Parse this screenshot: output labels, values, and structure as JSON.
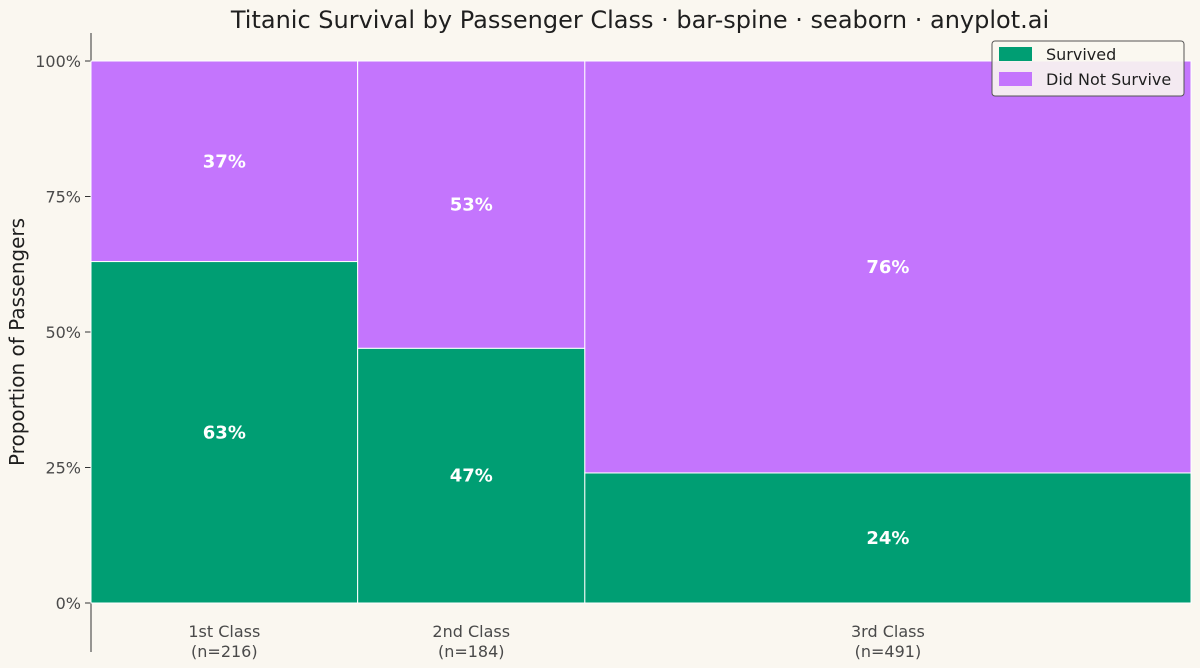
{
  "chart_data": {
    "type": "bar",
    "subtype": "spine",
    "title": "Titanic Survival by Passenger Class · bar-spine · seaborn · anyplot.ai",
    "xlabel": "",
    "ylabel": "Proportion of Passengers",
    "ylim": [
      0,
      1
    ],
    "yticks": [
      "0%",
      "25%",
      "50%",
      "75%",
      "100%"
    ],
    "categories": [
      "1st Class",
      "2nd Class",
      "3rd Class"
    ],
    "category_counts": [
      "(n=216)",
      "(n=184)",
      "(n=491)"
    ],
    "counts": [
      216,
      184,
      491
    ],
    "series": [
      {
        "name": "Survived",
        "color": "#009E73",
        "values": [
          0.63,
          0.47,
          0.24
        ],
        "labels": [
          "63%",
          "47%",
          "24%"
        ]
      },
      {
        "name": "Did Not Survive",
        "color": "#C475FD",
        "values": [
          0.37,
          0.53,
          0.76
        ],
        "labels": [
          "37%",
          "53%",
          "76%"
        ]
      }
    ],
    "legend": "top-right",
    "grid": false
  }
}
